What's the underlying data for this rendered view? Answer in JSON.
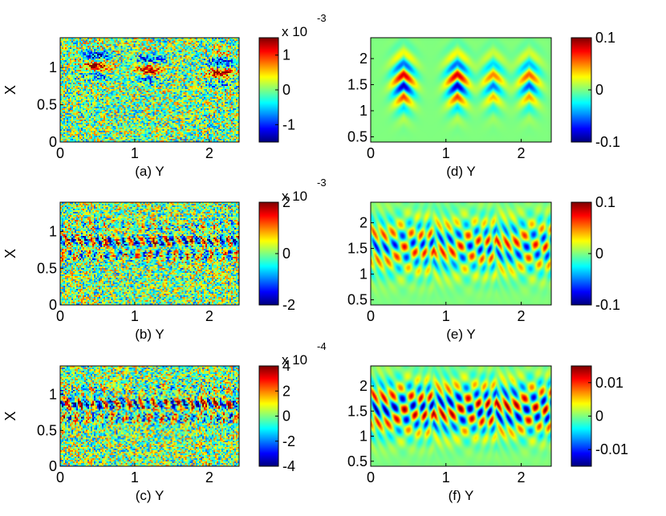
{
  "chart_data": [
    {
      "type": "heatmap",
      "caption": "(a) Y",
      "xlabel": "Y",
      "ylabel": "X",
      "xlim": [
        0,
        2.4
      ],
      "ylim": [
        0,
        1.4
      ],
      "xticks": [
        "0",
        "1",
        "2"
      ],
      "yticks": [
        "0",
        "0.5",
        "1"
      ],
      "colorbar": {
        "exponent": "x 10",
        "power": "-3",
        "min": -0.0015,
        "max": 0.0015,
        "ticks": [
          "1",
          "0",
          "-1"
        ]
      },
      "pattern": "noisy blobs"
    },
    {
      "type": "heatmap",
      "caption": "(b) Y",
      "xlabel": "Y",
      "ylabel": "X",
      "xlim": [
        0,
        2.4
      ],
      "ylim": [
        0,
        1.4
      ],
      "xticks": [
        "0",
        "1",
        "2"
      ],
      "yticks": [
        "0",
        "0.5",
        "1"
      ],
      "colorbar": {
        "exponent": "x 10",
        "power": "-3",
        "min": -0.002,
        "max": 0.002,
        "ticks": [
          "2",
          "0",
          "-2"
        ]
      },
      "pattern": "noisy stripes"
    },
    {
      "type": "heatmap",
      "caption": "(c) Y",
      "xlabel": "Y",
      "ylabel": "X",
      "xlim": [
        0,
        2.4
      ],
      "ylim": [
        0,
        1.4
      ],
      "xticks": [
        "0",
        "1",
        "2"
      ],
      "yticks": [
        "0",
        "0.5",
        "1"
      ],
      "colorbar": {
        "exponent": "x 10",
        "power": "-4",
        "min": -0.0004,
        "max": 0.0004,
        "ticks": [
          "4",
          "2",
          "0",
          "-2",
          "-4"
        ]
      },
      "pattern": "noisy stripes"
    },
    {
      "type": "heatmap",
      "caption": "(d) Y",
      "xlabel": "Y",
      "ylabel": "",
      "xlim": [
        0,
        2.4
      ],
      "ylim": [
        0.4,
        2.4
      ],
      "xticks": [
        "0",
        "1",
        "2"
      ],
      "yticks": [
        "0.5",
        "1",
        "1.5",
        "2"
      ],
      "colorbar": {
        "exponent": "",
        "power": "",
        "min": -0.1,
        "max": 0.1,
        "ticks": [
          "0.1",
          "0",
          "-0.1"
        ]
      },
      "pattern": "smooth wave packets"
    },
    {
      "type": "heatmap",
      "caption": "(e) Y",
      "xlabel": "Y",
      "ylabel": "",
      "xlim": [
        0,
        2.4
      ],
      "ylim": [
        0.4,
        2.4
      ],
      "xticks": [
        "0",
        "1",
        "2"
      ],
      "yticks": [
        "0.5",
        "1",
        "1.5",
        "2"
      ],
      "colorbar": {
        "exponent": "",
        "power": "",
        "min": -0.1,
        "max": 0.1,
        "ticks": [
          "0.1",
          "0",
          "-0.1"
        ]
      },
      "pattern": "smooth interference"
    },
    {
      "type": "heatmap",
      "caption": "(f) Y",
      "xlabel": "Y",
      "ylabel": "",
      "xlim": [
        0,
        2.4
      ],
      "ylim": [
        0.4,
        2.4
      ],
      "xticks": [
        "0",
        "1",
        "2"
      ],
      "yticks": [
        "0.5",
        "1",
        "1.5",
        "2"
      ],
      "colorbar": {
        "exponent": "",
        "power": "",
        "min": -0.015,
        "max": 0.015,
        "ticks": [
          "0.01",
          "0",
          "-0.01"
        ]
      },
      "pattern": "strong interference"
    }
  ]
}
